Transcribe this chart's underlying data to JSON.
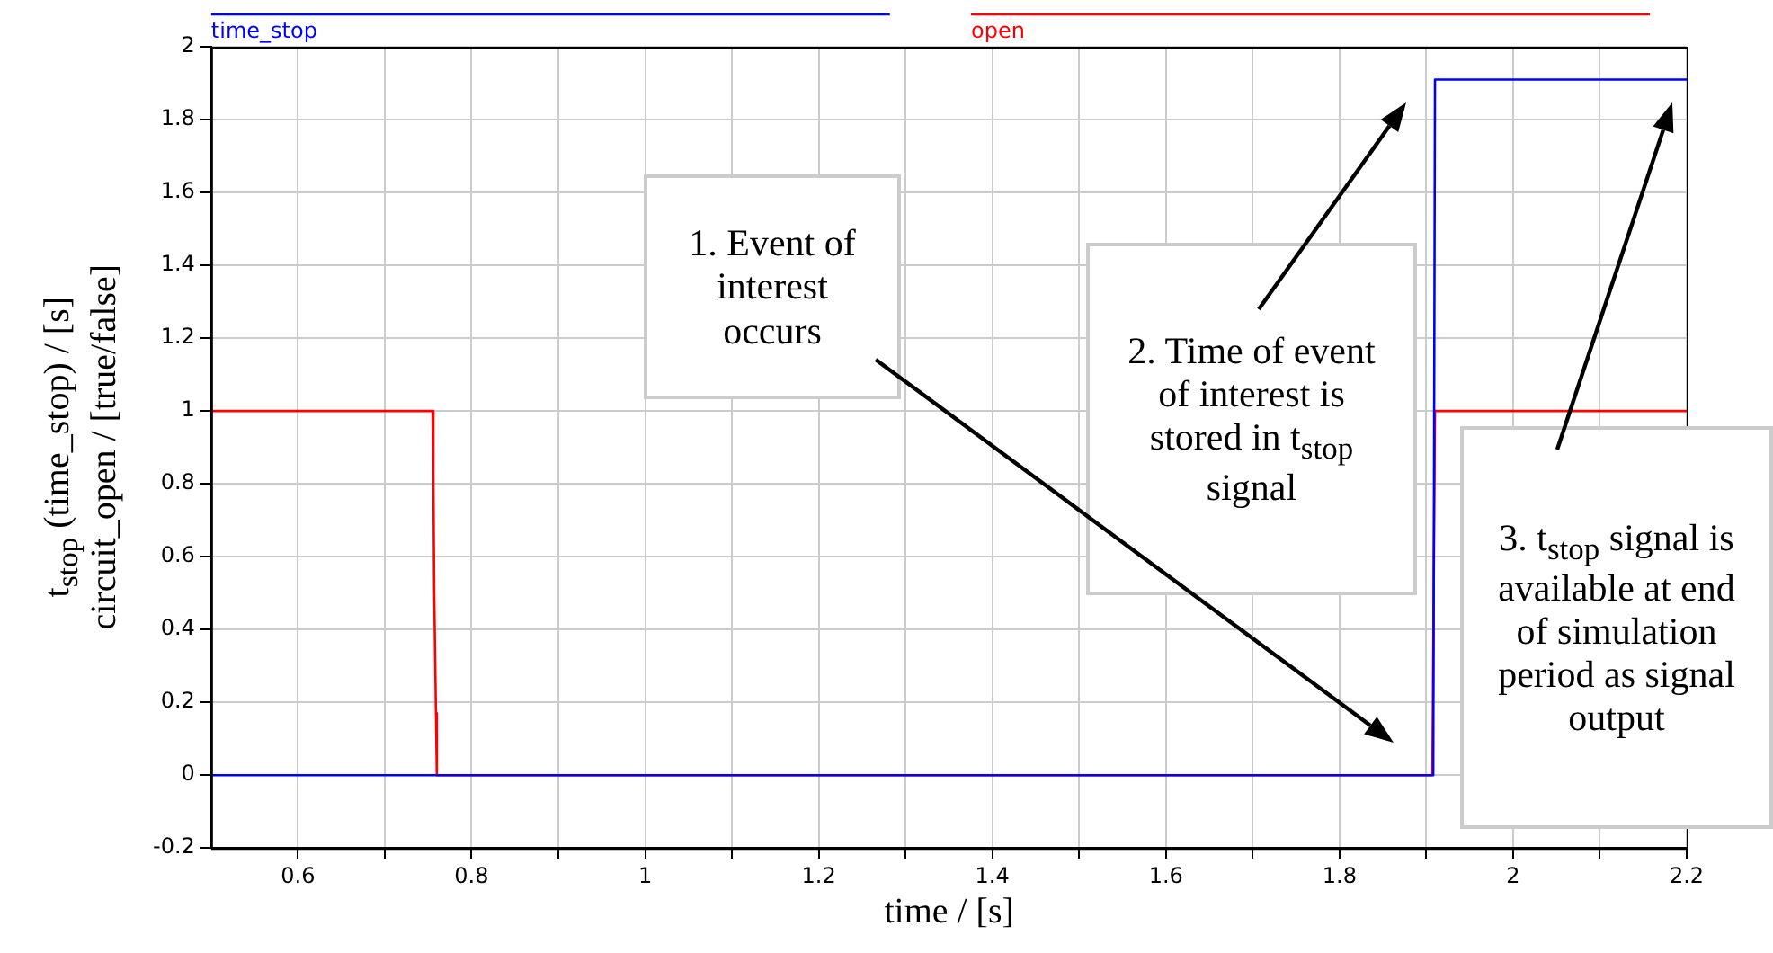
{
  "chart_data": {
    "type": "line",
    "xlabel": "time / [s]",
    "ylabel": "t$_{stop}$ (time_stop) / [s]\ncircuit_open / [true/false]",
    "xlim": [
      0.5,
      2.2
    ],
    "xticks": [
      0.6,
      {
        "value": 0.7,
        "label": null
      },
      0.8,
      {
        "value": 0.9,
        "label": null
      },
      1,
      {
        "value": 1.1,
        "label": null
      },
      1.2,
      {
        "value": 1.3,
        "label": null
      },
      1.4,
      {
        "value": 1.5,
        "label": null
      },
      1.6,
      {
        "value": 1.7,
        "label": null
      },
      1.8,
      {
        "value": 1.9,
        "label": null
      },
      2,
      {
        "value": 2.1,
        "label": null
      },
      2.2
    ],
    "ylim": [
      -0.2,
      2
    ],
    "yticks": [
      -0.2,
      0,
      0.2,
      0.4,
      0.6,
      0.8,
      1,
      1.2,
      1.4,
      1.6,
      1.8,
      2
    ],
    "grid": true,
    "legend": "top",
    "marker": "none",
    "line_style": "solid",
    "series": [
      {
        "name": "time_stop",
        "color": "#0000ff",
        "x": [
          0.5,
          1.908,
          1.91,
          2.2
        ],
        "values": [
          0,
          0,
          1.91,
          1.91
        ]
      },
      {
        "name": "open",
        "color": "#ff0000",
        "x": [
          0.5,
          0.755,
          0.756,
          0.757,
          0.759,
          0.76,
          1.907,
          1.91,
          2.2
        ],
        "values": [
          1,
          1,
          0.83,
          0.5,
          0.17,
          0,
          0,
          1,
          1
        ]
      }
    ],
    "annotations": [
      "1. Event of interest occurs",
      "2. Time of event of interest is stored in t$_{stop}$ signal",
      "3. t$_{stop}$ signal is available at end of simulation period as signal output"
    ]
  }
}
